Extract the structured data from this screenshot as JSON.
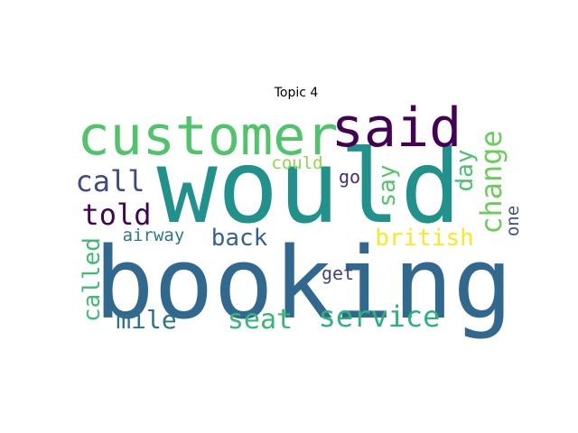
{
  "title": "Topic 4",
  "words": [
    {
      "id": "would",
      "text": "would",
      "color": "#21918c"
    },
    {
      "id": "booking",
      "text": "booking",
      "color": "#31688e"
    },
    {
      "id": "customer",
      "text": "customer",
      "color": "#4fc46a"
    },
    {
      "id": "said",
      "text": "said",
      "color": "#440154"
    },
    {
      "id": "service",
      "text": "service",
      "color": "#2db27d"
    },
    {
      "id": "change",
      "text": "change",
      "color": "#6ccd5a"
    },
    {
      "id": "seat",
      "text": "seat",
      "color": "#35b779"
    },
    {
      "id": "call",
      "text": "call",
      "color": "#3e4a89"
    },
    {
      "id": "told",
      "text": "told",
      "color": "#440154"
    },
    {
      "id": "british",
      "text": "british",
      "color": "#fde725"
    },
    {
      "id": "back",
      "text": "back",
      "color": "#33638d"
    },
    {
      "id": "called",
      "text": "called",
      "color": "#3fbc73"
    },
    {
      "id": "mile",
      "text": "mile",
      "color": "#2c728e"
    },
    {
      "id": "day",
      "text": "day",
      "color": "#4ac16d"
    },
    {
      "id": "say",
      "text": "say",
      "color": "#52c569"
    },
    {
      "id": "could",
      "text": "could",
      "color": "#8fd744"
    },
    {
      "id": "airway",
      "text": "airway",
      "color": "#2a788e"
    },
    {
      "id": "get",
      "text": "get",
      "color": "#414487"
    },
    {
      "id": "go",
      "text": "go",
      "color": "#472d7b"
    },
    {
      "id": "one",
      "text": "one",
      "color": "#3b528b"
    }
  ]
}
